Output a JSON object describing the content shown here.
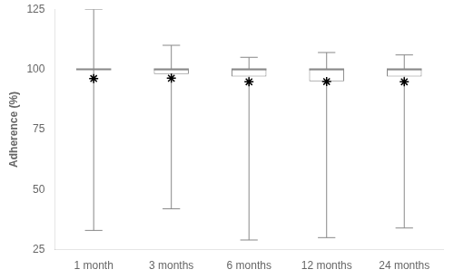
{
  "chart_data": {
    "type": "box",
    "ylabel": "Adherence (%)",
    "categories": [
      "1 month",
      "3 months",
      "6 months",
      "12 months",
      "24 months"
    ],
    "ylim": [
      25,
      125
    ],
    "yticks": [
      25,
      50,
      75,
      100,
      125
    ],
    "grid": false,
    "series": [
      {
        "type": "box",
        "color": "#888888",
        "whislo": [
          33,
          42,
          29,
          30,
          34
        ],
        "q1": [
          100,
          98,
          97,
          95,
          97
        ],
        "med": [
          100,
          100,
          100,
          100,
          100
        ],
        "q3": [
          100,
          100,
          100,
          100,
          100
        ],
        "whishi": [
          125,
          110,
          105,
          107,
          106
        ]
      },
      {
        "type": "scatter",
        "marker": "star",
        "color": "#000000",
        "values": [
          96.2,
          96.3,
          94.8,
          94.9,
          94.8
        ]
      }
    ]
  }
}
